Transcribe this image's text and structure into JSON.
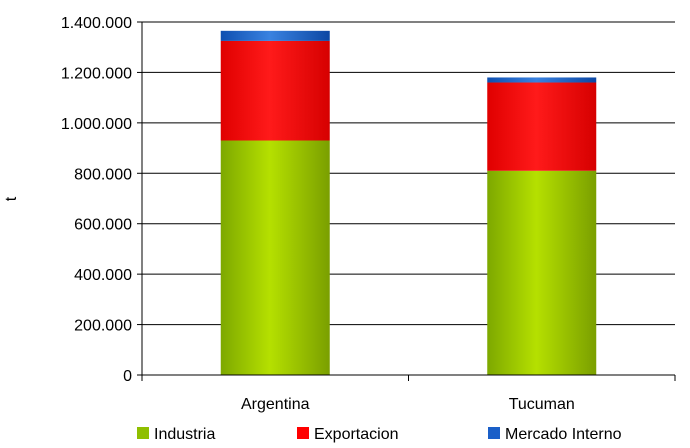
{
  "chart_data": {
    "type": "bar",
    "stacked": true,
    "title": "",
    "xlabel": "",
    "ylabel": "t",
    "ylim": [
      0,
      1400000
    ],
    "yticks": [
      0,
      200000,
      400000,
      600000,
      800000,
      1000000,
      1200000,
      1400000
    ],
    "ytick_labels": [
      "0",
      "200.000",
      "400.000",
      "600.000",
      "800.000",
      "1.000.000",
      "1.200.000",
      "1.400.000"
    ],
    "grid": true,
    "legend_position": "bottom",
    "categories": [
      "Argentina",
      "Tucuman"
    ],
    "series": [
      {
        "name": "Industria",
        "color": "#8fbf00",
        "values": [
          930000,
          810000
        ]
      },
      {
        "name": "Exportacion",
        "color": "#ff0000",
        "values": [
          395000,
          350000
        ]
      },
      {
        "name": "Mercado Interno",
        "color": "#1a5fc8",
        "values": [
          40000,
          20000
        ]
      }
    ]
  }
}
